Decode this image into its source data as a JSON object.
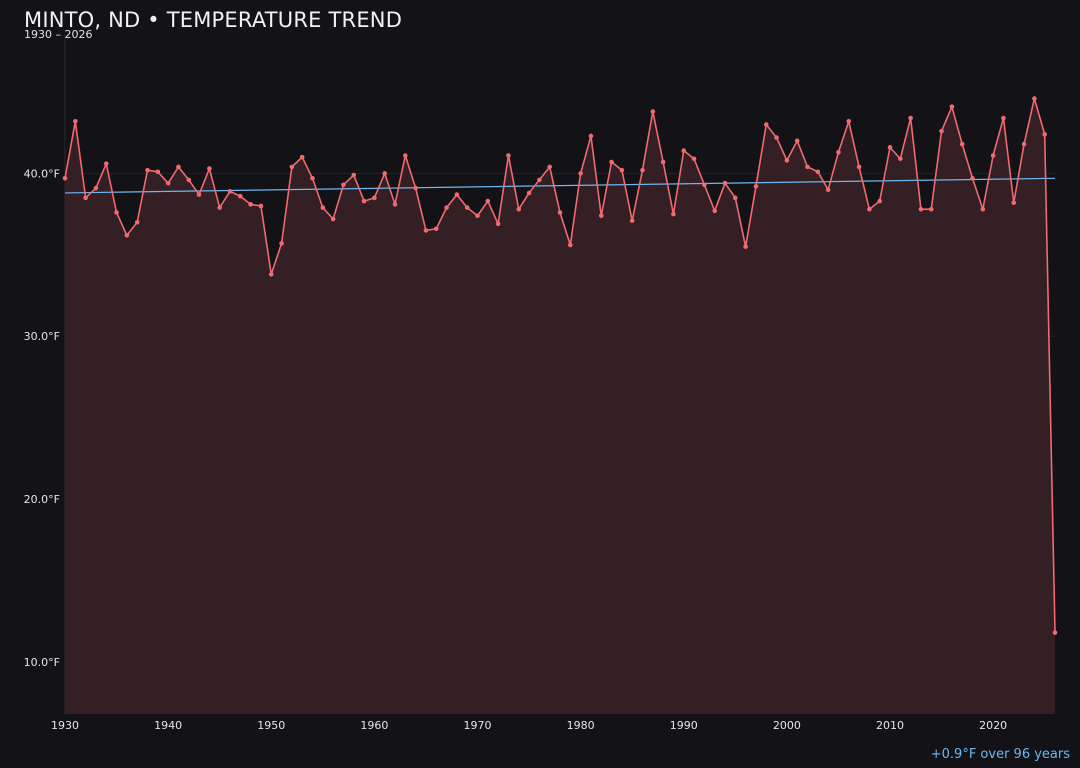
{
  "chart_data": {
    "type": "line",
    "title": "MINTO, ND • TEMPERATURE TREND",
    "subtitle": "1930 – 2026",
    "trend_label": "+0.9°F over 96 years",
    "xlim": [
      1930,
      2026
    ],
    "ylim": [
      6.8,
      48.5
    ],
    "x_ticks": [
      1930,
      1940,
      1950,
      1960,
      1970,
      1980,
      1990,
      2000,
      2010,
      2020
    ],
    "y_ticks": [
      {
        "value": 10,
        "label": "10.0°F"
      },
      {
        "value": 20,
        "label": "20.0°F"
      },
      {
        "value": 30,
        "label": "30.0°F"
      },
      {
        "value": 40,
        "label": "40.0°F"
      }
    ],
    "grid": true,
    "colors": {
      "series": "#f06a6f",
      "fill": "#341f25",
      "trend": "#6cb8f0",
      "grid": "#2a2328",
      "background": "#131217"
    },
    "series": [
      {
        "x": [
          1930,
          1931,
          1932,
          1933,
          1934,
          1935,
          1936,
          1937,
          1938,
          1939,
          1940,
          1941,
          1942,
          1943,
          1944,
          1945,
          1946,
          1947,
          1948,
          1949,
          1950,
          1951,
          1952,
          1953,
          1954,
          1955,
          1956,
          1957,
          1958,
          1959,
          1960,
          1961,
          1962,
          1963,
          1964,
          1965,
          1966,
          1967,
          1968,
          1969,
          1970,
          1971,
          1972,
          1973,
          1974,
          1975,
          1976,
          1977,
          1978,
          1979,
          1980,
          1981,
          1982,
          1983,
          1984,
          1985,
          1986,
          1987,
          1988,
          1989,
          1990,
          1991,
          1992,
          1993,
          1994,
          1995,
          1996,
          1997,
          1998,
          1999,
          2000,
          2001,
          2002,
          2003,
          2004,
          2005,
          2006,
          2007,
          2008,
          2009,
          2010,
          2011,
          2012,
          2013,
          2014,
          2015,
          2016,
          2017,
          2018,
          2019,
          2020,
          2021,
          2022,
          2023,
          2024,
          2025,
          2026
        ],
        "values": [
          39.7,
          43.2,
          38.5,
          39.1,
          40.6,
          37.6,
          36.2,
          37.0,
          40.2,
          40.1,
          39.4,
          40.4,
          39.6,
          38.7,
          40.3,
          37.9,
          38.9,
          38.6,
          38.1,
          38.0,
          33.8,
          35.7,
          40.4,
          41.0,
          39.7,
          37.9,
          37.2,
          39.3,
          39.9,
          38.3,
          38.5,
          40.0,
          38.1,
          41.1,
          39.1,
          36.5,
          36.6,
          37.9,
          38.7,
          37.9,
          37.4,
          38.3,
          36.9,
          41.1,
          37.8,
          38.8,
          39.6,
          40.4,
          37.6,
          35.6,
          40.0,
          42.3,
          37.4,
          40.7,
          40.2,
          37.1,
          40.2,
          43.8,
          40.7,
          37.5,
          41.4,
          40.9,
          39.3,
          37.7,
          39.4,
          38.5,
          35.5,
          39.2,
          43.0,
          42.2,
          40.8,
          42.0,
          40.4,
          40.1,
          39.0,
          41.3,
          43.2,
          40.4,
          37.8,
          38.3,
          41.6,
          40.9,
          43.4,
          37.8,
          37.8,
          42.6,
          44.1,
          41.8,
          39.7,
          37.8,
          41.1,
          43.4,
          38.2,
          41.8,
          44.6,
          42.4,
          11.8
        ]
      }
    ],
    "trend_line": {
      "x": [
        1930,
        2026
      ],
      "values": [
        38.8,
        39.7
      ]
    }
  }
}
